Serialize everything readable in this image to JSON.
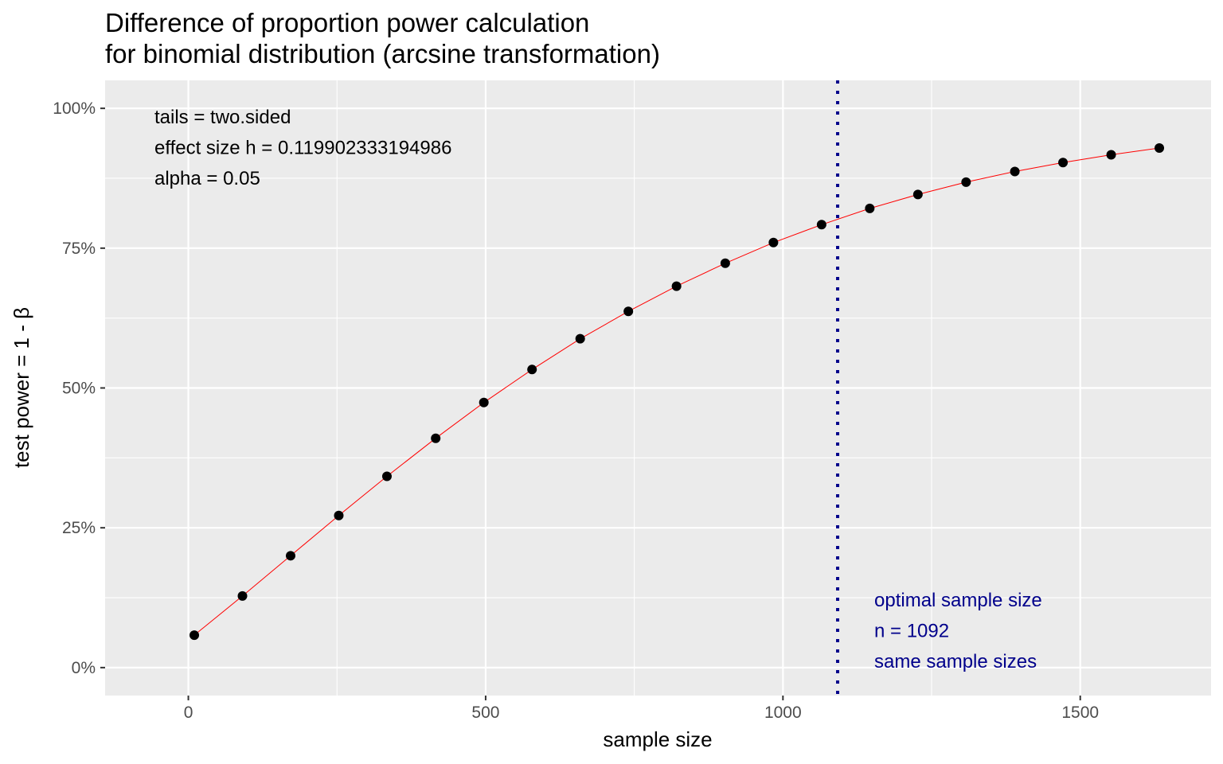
{
  "chart_data": {
    "type": "scatter",
    "title_lines": [
      "Difference of proportion power calculation",
      "for binomial distribution (arcsine transformation)"
    ],
    "xlabel": "sample size",
    "ylabel": "test power = 1 - β",
    "xlim": [
      -140,
      1720
    ],
    "ylim": [
      -0.05,
      1.05
    ],
    "x_ticks": [
      0,
      500,
      1000,
      1500
    ],
    "x_tick_labels": [
      "0",
      "500",
      "1000",
      "1500"
    ],
    "y_ticks": [
      0,
      0.25,
      0.5,
      0.75,
      1.0
    ],
    "y_tick_labels": [
      "0%",
      "25%",
      "50%",
      "75%",
      "100%"
    ],
    "grid": true,
    "background_color": "#EBEBEB",
    "grid_color": "#FFFFFF",
    "point_color": "#000000",
    "curve_color": "#FF0000",
    "vline_color": "#00008B",
    "annotation_colors": {
      "params": "#000000",
      "optimal": "#00008B"
    },
    "series": [
      {
        "x": [
          10,
          91,
          172,
          253,
          334,
          416,
          497,
          578,
          659,
          740,
          821,
          903,
          984,
          1065,
          1146,
          1227,
          1308,
          1390,
          1471,
          1552,
          1633
        ],
        "y": [
          0.058,
          0.128,
          0.2,
          0.272,
          0.342,
          0.41,
          0.474,
          0.533,
          0.588,
          0.637,
          0.682,
          0.723,
          0.76,
          0.792,
          0.821,
          0.846,
          0.868,
          0.887,
          0.903,
          0.917,
          0.929
        ]
      }
    ],
    "vline": {
      "x": 1092
    },
    "annotations_params": [
      "tails = two.sided",
      "effect size h = 0.119902333194986",
      "alpha = 0.05"
    ],
    "annotations_optimal": [
      "optimal sample size",
      "n = 1092",
      "same sample sizes"
    ]
  }
}
